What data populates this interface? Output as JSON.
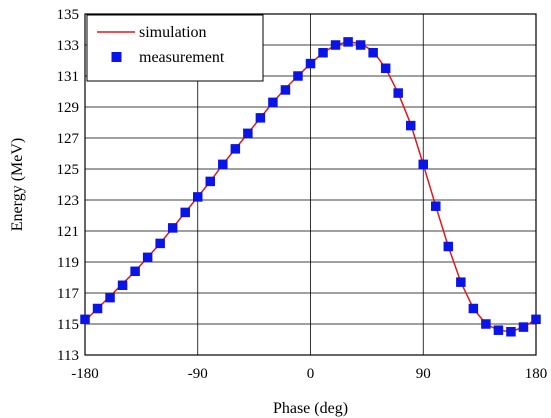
{
  "chart_data": {
    "type": "line",
    "title": "",
    "xlabel": "Phase (deg)",
    "ylabel": "Energy (MeV)",
    "xlim": [
      -180,
      180
    ],
    "ylim": [
      113,
      135
    ],
    "xticks": [
      -180,
      -90,
      0,
      90,
      180
    ],
    "yticks": [
      113,
      115,
      117,
      119,
      121,
      123,
      125,
      127,
      129,
      131,
      133,
      135
    ],
    "grid": true,
    "legend_position": "top-left",
    "series": [
      {
        "name": "simulation",
        "type": "line",
        "color": "#e0191e",
        "x": [
          -180,
          -170,
          -160,
          -150,
          -140,
          -130,
          -120,
          -110,
          -100,
          -90,
          -80,
          -70,
          -60,
          -50,
          -40,
          -30,
          -20,
          -10,
          0,
          10,
          20,
          30,
          40,
          50,
          60,
          70,
          80,
          90,
          100,
          110,
          120,
          130,
          140,
          150,
          160,
          170,
          180
        ],
        "y": [
          115.2,
          116.0,
          116.8,
          117.6,
          118.4,
          119.3,
          120.2,
          121.2,
          122.2,
          123.2,
          124.2,
          125.3,
          126.3,
          127.3,
          128.3,
          129.3,
          130.2,
          131.0,
          131.8,
          132.5,
          133.0,
          133.2,
          133.1,
          132.6,
          131.5,
          129.9,
          127.9,
          125.3,
          122.6,
          120.0,
          117.7,
          116.0,
          115.0,
          114.6,
          114.5,
          114.8,
          115.3
        ]
      },
      {
        "name": "measurement",
        "type": "scatter",
        "marker": "square",
        "color": "#0a14e6",
        "x": [
          -180,
          -170,
          -160,
          -150,
          -140,
          -130,
          -120,
          -110,
          -100,
          -90,
          -80,
          -70,
          -60,
          -50,
          -40,
          -30,
          -20,
          -10,
          0,
          10,
          20,
          30,
          40,
          50,
          60,
          70,
          80,
          90,
          100,
          110,
          120,
          130,
          140,
          150,
          160,
          170,
          180
        ],
        "y": [
          115.3,
          116.0,
          116.7,
          117.5,
          118.4,
          119.3,
          120.2,
          121.2,
          122.2,
          123.2,
          124.2,
          125.3,
          126.3,
          127.3,
          128.3,
          129.3,
          130.1,
          131.0,
          131.8,
          132.5,
          133.0,
          133.2,
          133.0,
          132.5,
          131.5,
          129.9,
          127.8,
          125.3,
          122.6,
          120.0,
          117.7,
          116.0,
          115.0,
          114.6,
          114.5,
          114.8,
          115.3
        ]
      }
    ]
  }
}
